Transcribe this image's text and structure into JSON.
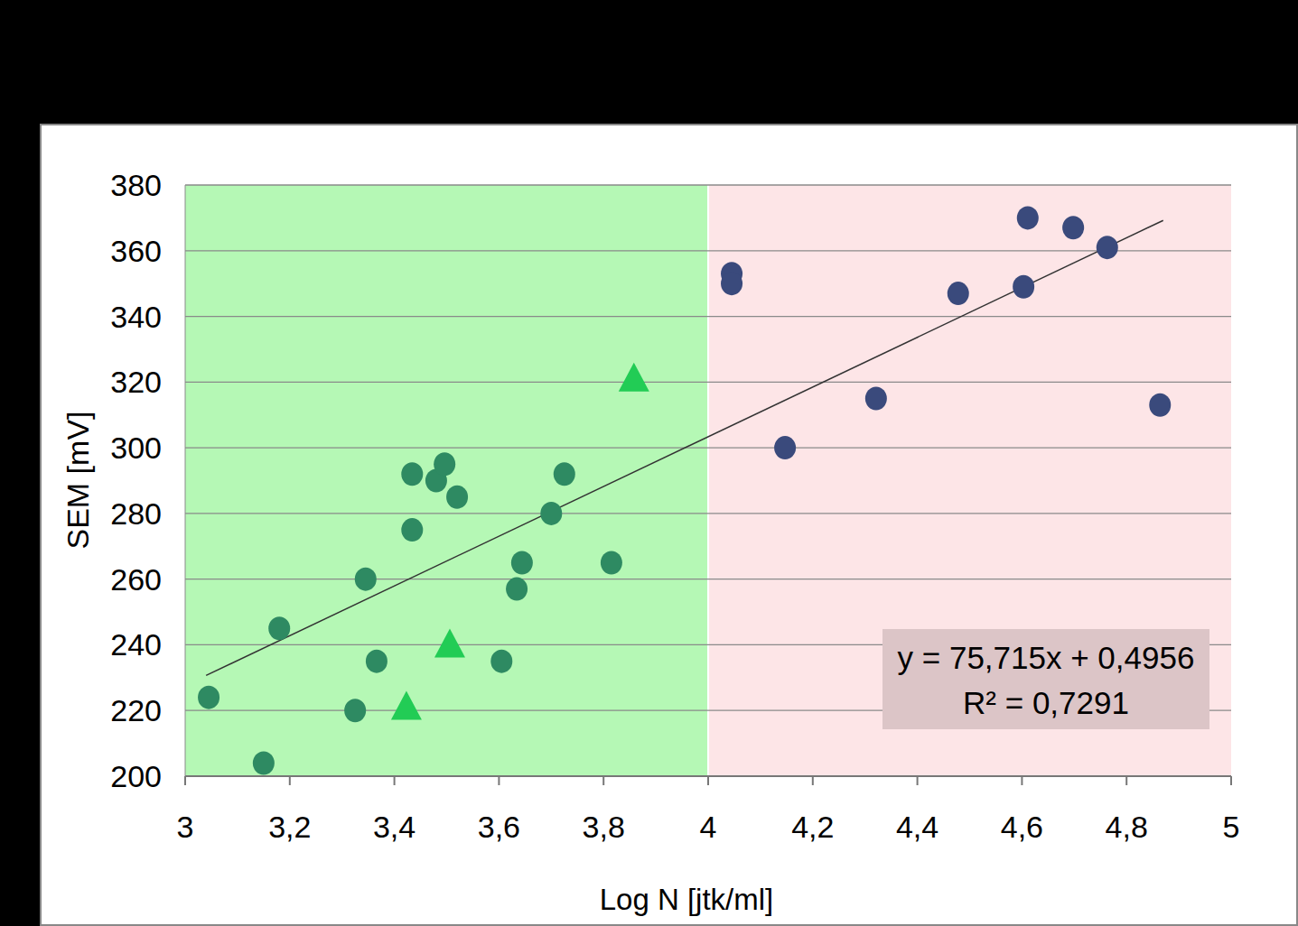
{
  "chart_data": {
    "type": "scatter",
    "x_label": "Log N [jtk/ml]",
    "y_label": "SEM [mV]",
    "xlim": [
      3,
      5
    ],
    "ylim": [
      200,
      380
    ],
    "xticks": [
      3,
      {
        "value": 3.2,
        "label": "3,2"
      },
      {
        "value": 3.4,
        "label": "3,4"
      },
      {
        "value": 3.6,
        "label": "3,6"
      },
      {
        "value": 3.8,
        "label": "3,8"
      },
      4,
      {
        "value": 4.2,
        "label": "4,2"
      },
      {
        "value": 4.4,
        "label": "4,4"
      },
      {
        "value": 4.6,
        "label": "4,6"
      },
      {
        "value": 4.8,
        "label": "4,8"
      },
      5
    ],
    "yticks": [
      200,
      220,
      240,
      260,
      280,
      300,
      320,
      340,
      360,
      380
    ],
    "grid": true,
    "bands": [
      {
        "x": [
          3,
          4
        ],
        "color": "#b5f8b5"
      },
      {
        "x": [
          4,
          5
        ],
        "color": "#fde5e7"
      }
    ],
    "series": [
      {
        "color": "#2e8a62",
        "marker": "circle",
        "x": [
          3.045,
          3.15,
          3.18,
          3.325,
          3.345,
          3.366,
          3.434,
          3.434,
          3.48,
          3.496,
          3.52,
          3.605,
          3.634,
          3.644,
          3.7,
          3.725,
          3.815
        ],
        "values": [
          224,
          204,
          245,
          220,
          260,
          235,
          292,
          275,
          290,
          295,
          285,
          235,
          257,
          265,
          280,
          292,
          265
        ]
      },
      {
        "color": "#22cc55",
        "marker": "triangle",
        "x": [
          3.423,
          3.506,
          3.858
        ],
        "values": [
          221,
          240,
          321
        ]
      },
      {
        "color": "#3a4a7c",
        "marker": "circle",
        "x": [
          4.045,
          4.045,
          4.147,
          4.321,
          4.478,
          4.603,
          4.611,
          4.698,
          4.763,
          4.864
        ],
        "values": [
          353,
          350,
          300,
          315,
          347,
          349,
          370,
          367,
          361,
          313
        ]
      }
    ],
    "trendline": {
      "slope": 75.715,
      "intercept": 0.4956,
      "x": [
        3.04,
        4.87
      ],
      "r2": 0.7291,
      "label": "y = 75,715x + 0,4956",
      "r2_label": "R² = 0,7291",
      "color": "#333333"
    }
  }
}
